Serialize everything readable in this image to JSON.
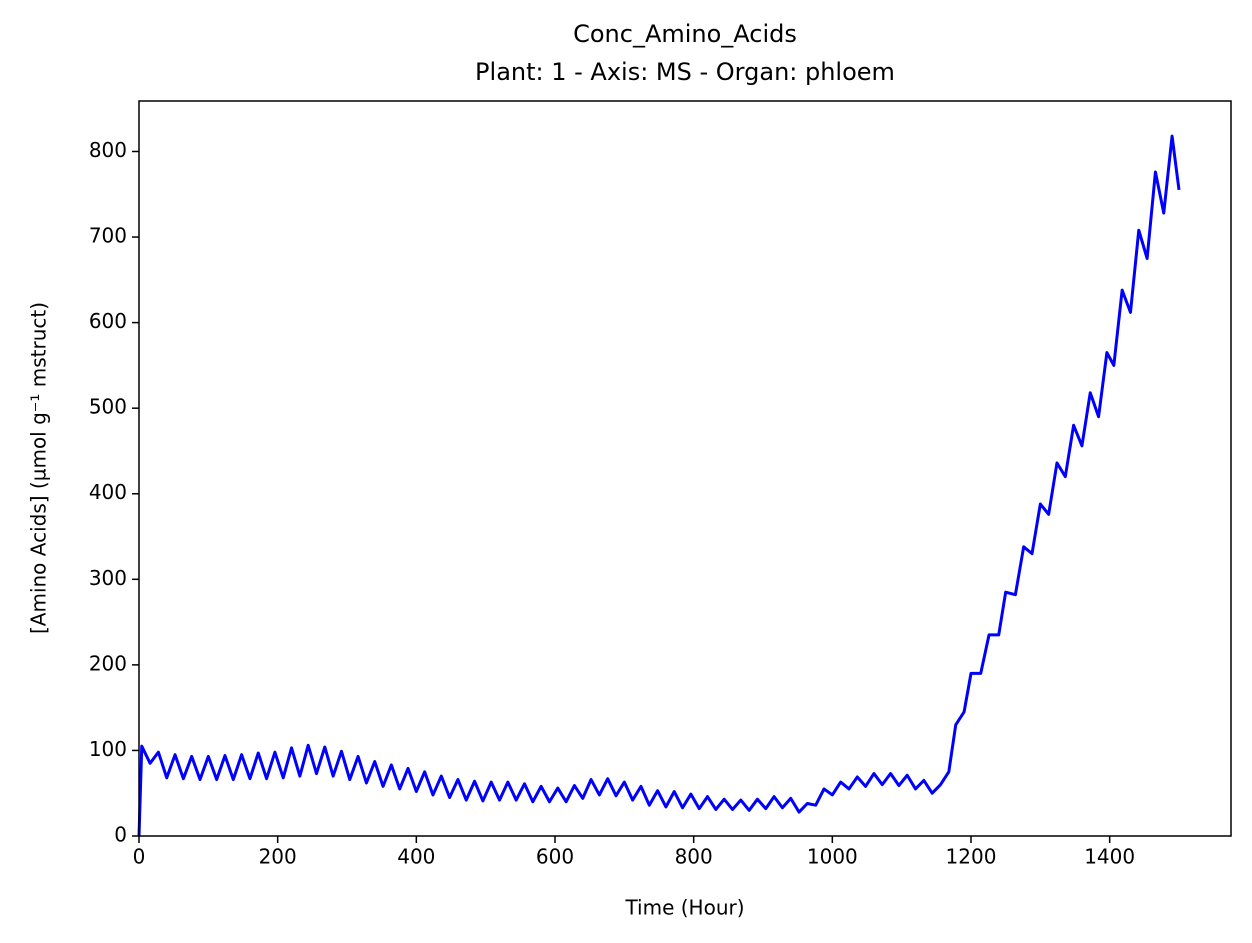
{
  "chart_data": {
    "type": "line",
    "title": "Conc_Amino_Acids",
    "subtitle": "Plant: 1 - Axis: MS - Organ: phloem",
    "x_label": "Time (Hour)",
    "y_label": "[Amino Acids] (µmol g⁻¹ mstruct)",
    "color": "#0000ff",
    "x": [
      0,
      4,
      16,
      28,
      40,
      52,
      64,
      76,
      88,
      100,
      112,
      124,
      136,
      148,
      160,
      172,
      184,
      196,
      208,
      220,
      232,
      244,
      256,
      268,
      280,
      292,
      304,
      316,
      328,
      340,
      352,
      364,
      376,
      388,
      400,
      412,
      424,
      436,
      448,
      460,
      472,
      484,
      496,
      508,
      520,
      532,
      544,
      556,
      568,
      580,
      592,
      604,
      616,
      628,
      640,
      652,
      664,
      676,
      688,
      700,
      712,
      724,
      736,
      748,
      760,
      772,
      784,
      796,
      808,
      820,
      832,
      844,
      856,
      868,
      880,
      892,
      904,
      916,
      928,
      940,
      952,
      964,
      976,
      988,
      1000,
      1012,
      1024,
      1036,
      1048,
      1060,
      1072,
      1084,
      1096,
      1108,
      1120,
      1132,
      1144,
      1156,
      1168,
      1178,
      1190,
      1200,
      1214,
      1226,
      1240,
      1250,
      1264,
      1276,
      1288,
      1300,
      1312,
      1324,
      1336,
      1348,
      1360,
      1372,
      1384,
      1396,
      1406,
      1418,
      1430,
      1442,
      1454,
      1466,
      1478,
      1490,
      1500
    ],
    "values": [
      0,
      105,
      85,
      98,
      68,
      95,
      67,
      93,
      66,
      93,
      66,
      94,
      66,
      95,
      67,
      97,
      67,
      98,
      68,
      103,
      70,
      106,
      73,
      104,
      70,
      99,
      66,
      93,
      62,
      87,
      58,
      83,
      55,
      79,
      52,
      75,
      48,
      70,
      45,
      66,
      42,
      64,
      41,
      63,
      42,
      63,
      42,
      61,
      40,
      58,
      40,
      56,
      40,
      59,
      44,
      66,
      48,
      67,
      47,
      63,
      42,
      58,
      36,
      53,
      34,
      52,
      33,
      49,
      32,
      46,
      31,
      43,
      31,
      42,
      30,
      43,
      32,
      46,
      33,
      44,
      28,
      38,
      36,
      55,
      48,
      63,
      55,
      69,
      58,
      73,
      60,
      73,
      59,
      71,
      55,
      65,
      50,
      60,
      75,
      130,
      145,
      190,
      190,
      235,
      235,
      285,
      282,
      338,
      330,
      388,
      376,
      436,
      420,
      480,
      456,
      518,
      490,
      565,
      550,
      638,
      612,
      708,
      675,
      776,
      728,
      818,
      755
    ],
    "xlim": [
      0,
      1575
    ],
    "xticks": [
      0,
      200,
      400,
      600,
      800,
      1000,
      1200,
      1400
    ],
    "ylim": [
      0,
      859
    ],
    "yticks": [
      0,
      100,
      200,
      300,
      400,
      500,
      600,
      700,
      800
    ],
    "grid": false
  }
}
